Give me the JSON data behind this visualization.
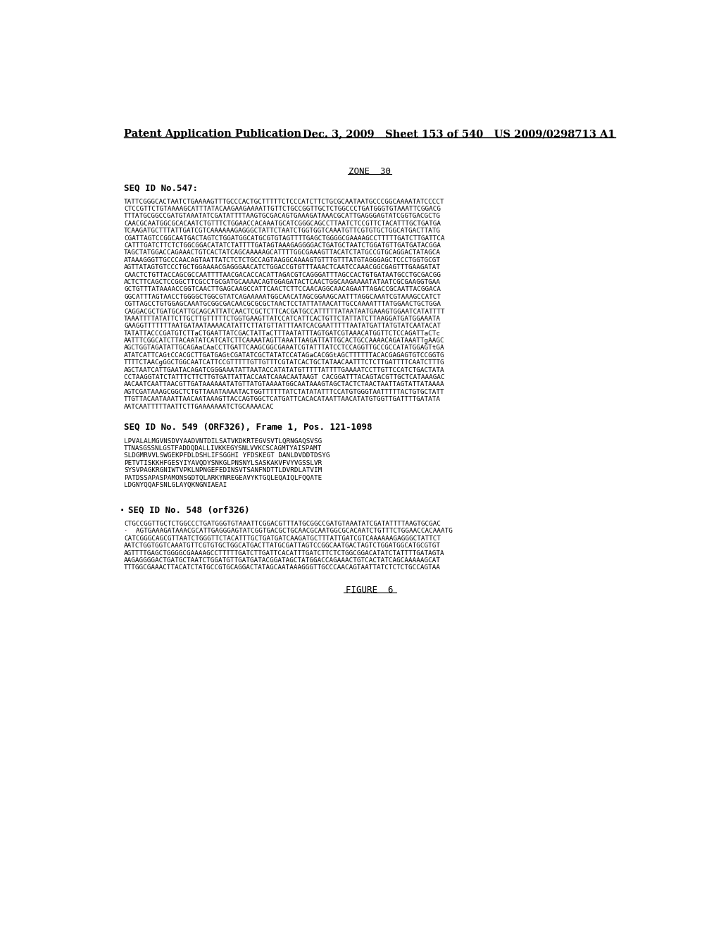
{
  "header_left": "Patent Application Publication",
  "header_right": "Dec. 3, 2009   Sheet 153 of 540   US 2009/0298713 A1",
  "zone_label": "ZONE  30",
  "seq547_label": "SEQ ID No.547:",
  "seq547_text": [
    "TATTCGGGCACTAATCTGAAAAGTTTGCCCACTGCTTTTTCTCCCATCTTCTGCGCAATAATGCCCGGCAAAATATCCCCT",
    "CTCCGTTCTGTAAAAGCATTTATACAAGAAGAAAATTGTTCTGCCGGTTGCTCTGGCCCTGATGGGTGTAAATTCGGACG",
    "TTTATGCGGCCGATGTAAATATCGATATTTTAAGTGCGACAGTGAAAGATAAACGCATTGAGGGAGTATCGGTGACGCTG",
    "CAACGCAATGGCGCACAATCTGTTTCTGGAACCACAAATGCATCGGGCAGCCTTAATCTCCGTTCTACATTTGCTGATGA",
    "TCAAGATGCTTTATTGATCGTCAAAAAAGAGGGCTATTCTAATCTGGTGGTCAAATGTTCGTGTGCTGGCATGACTTATG",
    "CGATTAGTCCGGCAATGACTAGTCTGGATGGCATGCGTGTAGTTTTGAGCTGGGGCGAAAAGCCTTTTTGATCTTGATTCA",
    "CATTTGATCTTCTCTGGCGGACATATCTATTTTGATAGTAAAGAGGGGACTGATGCTAATCTGGATGTTGATGATACGGA",
    "TAGCTATGGACCAGAAACTGTCACTATCAGCAAAAAGCATTTTGGCGAAAGTTACATCTATGCCGTGCAGGACTATAGCA",
    "ATAAAGGGTTGCCCAACAGTAATTATCTCTCTGCCAGTAAGGCAAAAGTGTTTGTTTATGTAGGGAGCTCCCTGGTGCGT",
    "AGTTATAGTGTCCCTGCTGGAAAACGAGGGAACATCTGGACCGTGTTTAAACTCAATCCAAACGGCGAGTTTGAAGATAT",
    "CAACTCTGTTACCAGCGCCAATTTTAACGACACCACATTAGACGTCAGGGATTTAGCCACTGTGATAATGCCTGCGACGG",
    "ACTCTTCAGCTCCGGCTTCGCCTGCGATGCAAAACAGTGGAGATACTCAACTGGCAAGAAAATATAATCGCGAAGGTGAA",
    "GCTGTTTATAAAACCGGTCAACTTGAGCAAGCCATTCAACTCTTCCAACAGGCAACAGAATTAGACCGCAATTACGGACA",
    "GGCATTTAGTAACCTGGGGCTGGCGTATCAGAAAAATGGCAACATAGCGGAAGCAATTTAGGCAAATCGTAAAGCCATCT",
    "CGTTAGCCTGTGGAGCAAATGCGGCGACAACGCGCGCTAACTCCTATTATAACATTGCCAAAATTTATGGAACTGCTGGA",
    "CAGGACGCTGATGCATTGCAGCATTATCAACTCGCTCTTCACGATGCCATTTTTATAATAATGAAAGTGGAATCATATTTT",
    "TAAATTTTATATTCTTGCTTGTTTTTCTGGTGAAGTTATCCATCATTCACTGTTCTATTATCTTAAGGATGATGGAAATA",
    "GAAGGTTTTTTTAATGATAATAAAACATATTCTTATGTTATTTAATCACGAATTTTTAATATGATTATGTATCAATACAT",
    "TATATTACCCGATGTCTTaCTGAATTATCGACTATTaCTTTAATATTTAGTGATCGTAAACATGGTTCTCCAGATTaCTc",
    "AATTTCGGCATCTTACAATATCATCATCTTCAAAATAGTTAAATTAAGATTATTGCACTGCCAAAACAGATAAATTgAAGC",
    "AGCTGGTAGATATTGCAGAaCAaCCTTGATTCAAGCGGCGAAATCGTATTTATCCTCCAGGTTGCCGCCATATGGAGTtGA",
    "ATATCATTCAGtCCACGCTTGATGAGtCGATATCGCTATATCCATAGaCACGGtAGCTTTTTTACACGAGAGTGTCCGGTG",
    "TTTTCTAACgGGCTGGCAATCATTCCGTTTTTGTTGTTTCGTATCACTGCTATAACAATTTCTCTTGATTTTCAATCTTTG",
    "AGCTAATCATTGAATACAGATCGGGAAATATTAATACCATATATGTTTTTATTTTGAAAATCCTTGTTCCATCTGACTATA",
    "CCTAAGGTATCTATTTCTTCTTGTGATTATTACCAATCAAACAATAAGT CACGGATTTACAGTACGTTGCTCATAAAGAC",
    "AACAATCAATTAACGTTGATAAAAAATATGTTATGTAAAATGGCAATAAAGTAGCTACTCTAACTAATTAGTATTATAAAA",
    "AGTCGATAAAGCGGCTCTGTTAAATAAAATACTGGTTTTTTATCTATATATTTCCATGTGGGTAATTTTTACTGTGCTATT",
    "TTGTTACAATAAATTAACAATAAAGTTACCAGTGGCTCATGATTCACACATAATTAACATATGTGGTTGATTTTGATATA",
    "AATCAATTTTTAATTCTTGAAAAAAATCTGCAAAACAC"
  ],
  "seq549_label": "SEQ ID No. 549 (ORF326), Frame 1, Pos. 121-1098",
  "seq549_text": [
    "LPVALALMGVNSDVYAADVNTDILSATVKDKRTEGVSVTLQRNGAQSVSG",
    "TTNASGSSNLGSTFADDQDALLIVKKEGYSNLVVKCSCAGMTYAISPAMT",
    "SLDGMRVVLSWGEKPFDLDSHLIFSGGHI YFDSKEGT DANLDVDDTDSYG",
    "PETVTISKKHFGESYIYAVQDYSNKGLPNSNYLSASKAKVFVYVGSSLVR",
    "SYSVPAGKRGNIWTVPKLNPNGEFEDINSVTSANFNDTTLDVRDLATVIM",
    "PATDSSAPASPAMONSGDTQLARKYNREGEAVYKTGQLEQAIQLFQQATE",
    "LDGNYQQAFSNLGLAYQKNGNIAEAI"
  ],
  "seq548_label": "SEQ ID No. 548 (orf326)",
  "seq548_text": [
    "CTGCCGGTTGCTCTGGCCCTGATGGGTGTAAATTCGGACGTTTATGCGGCCGATGTAAATATCGATATTTTAAGTGCGAC",
    "·  AGTGAAAGATAAACGCATTGAGGGAGTATCGGTGACGCTGCAACGCAATGGCGCACAATCTGTTTCTGGAACCACAAATG",
    "CATCGGGCAGCGTTAATCTGGGTTCTACATTTGCTGATGATCAAGATGCTTTATTGATCGTCAAAAAAGAGGGCTATTCT",
    "AATCTGGTGGTCAAATGTTCGTGTGCTGGCATGACTTATGCGATTAGTCCGGCAATGACTAGTCTGGATGGCATGCGTGT",
    "AGTTTTGAGCTGGGGCGAAAAGCCTTTTTGATCTTGATTCACATTTGATCTTCTCTGGCGGACATATCTATTTTGATAGTA",
    "AAGAGGGGACTGATGCTAATCTGGATGTTGATGATACGGATAGCTATGGACCAGAAACTGTCACTATCAGCAAAAAGCAT",
    "TTTGGCGAAACTTACATCTATGCCGTGCAGGACTATAGCAATAAAGGGTTGCCCAACAGTAATTATCTCTCTGCCAGTAA"
  ],
  "figure_label": "FIGURE  6",
  "bg_color": "#ffffff",
  "text_color": "#000000"
}
